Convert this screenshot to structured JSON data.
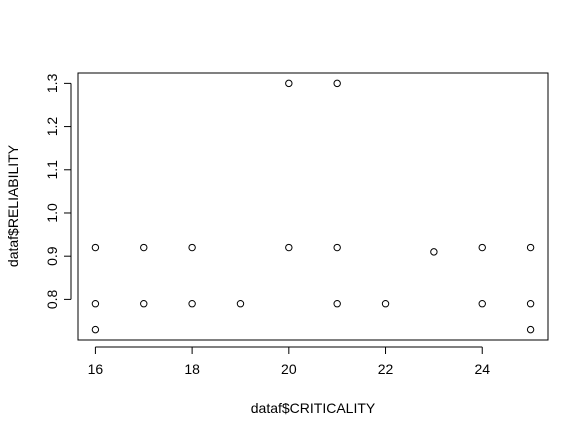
{
  "chart_data": {
    "type": "scatter",
    "title": "",
    "xlabel": "dataf$CRITICALITY",
    "ylabel": "dataf$RELIABILITY",
    "xlim": [
      15.64,
      25.36
    ],
    "ylim": [
      0.706,
      1.324
    ],
    "grid": false,
    "legend": "none",
    "marker": "open-circle",
    "x_ticks": [
      "16",
      "18",
      "20",
      "22",
      "24"
    ],
    "y_ticks": [
      "0.8",
      "0.9",
      "1.0",
      "1.1",
      "1.2",
      "1.3"
    ],
    "points": [
      {
        "x": 16,
        "y": 0.92
      },
      {
        "x": 16,
        "y": 0.79
      },
      {
        "x": 16,
        "y": 0.73
      },
      {
        "x": 17,
        "y": 0.92
      },
      {
        "x": 17,
        "y": 0.79
      },
      {
        "x": 18,
        "y": 0.92
      },
      {
        "x": 18,
        "y": 0.79
      },
      {
        "x": 19,
        "y": 0.79
      },
      {
        "x": 20,
        "y": 1.3
      },
      {
        "x": 20,
        "y": 0.92
      },
      {
        "x": 21,
        "y": 1.3
      },
      {
        "x": 21,
        "y": 0.92
      },
      {
        "x": 21,
        "y": 0.79
      },
      {
        "x": 22,
        "y": 0.79
      },
      {
        "x": 23,
        "y": 0.91
      },
      {
        "x": 24,
        "y": 0.92
      },
      {
        "x": 24,
        "y": 0.79
      },
      {
        "x": 25,
        "y": 0.92
      },
      {
        "x": 25,
        "y": 0.79
      },
      {
        "x": 25,
        "y": 0.73
      }
    ]
  }
}
